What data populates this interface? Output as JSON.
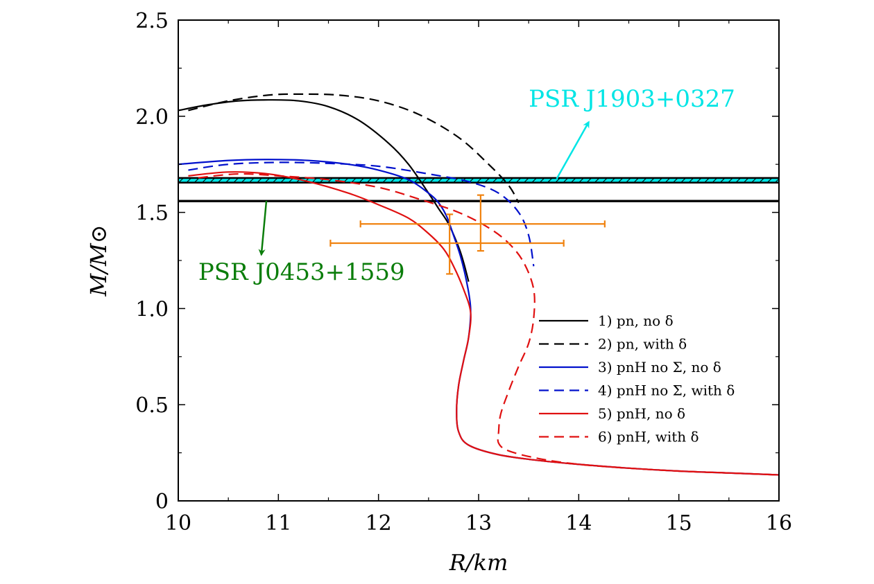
{
  "chart_data": {
    "type": "line",
    "title": "",
    "xlabel": "R/km",
    "ylabel": "M/M⊙",
    "xlim": [
      10,
      16
    ],
    "ylim": [
      0,
      2.5
    ],
    "xticks": [
      10,
      11,
      12,
      13,
      14,
      15,
      16
    ],
    "xtick_labels": [
      "10",
      "11",
      "12",
      "13",
      "14",
      "15",
      "16"
    ],
    "yticks": [
      0,
      0.5,
      1.0,
      1.5,
      2.0,
      2.5
    ],
    "ytick_labels": [
      "0",
      "0.5",
      "1.0",
      "1.5",
      "2.0",
      "2.5"
    ],
    "legend_position": "bottom-right",
    "series": [
      {
        "name": "1) pn, no δ",
        "color": "#000000",
        "dash": "solid",
        "x": [
          10.0,
          10.3,
          10.6,
          10.9,
          11.2,
          11.5,
          11.8,
          12.1,
          12.3,
          12.5,
          12.6,
          12.7,
          12.8,
          12.85,
          12.9
        ],
        "y": [
          2.03,
          2.06,
          2.08,
          2.085,
          2.08,
          2.05,
          1.98,
          1.86,
          1.75,
          1.6,
          1.52,
          1.44,
          1.32,
          1.24,
          1.14
        ]
      },
      {
        "name": "2) pn, with δ",
        "color": "#000000",
        "dash": "dashed",
        "x": [
          10.1,
          10.5,
          10.9,
          11.2,
          11.6,
          12.0,
          12.4,
          12.8,
          13.1,
          13.3,
          13.4
        ],
        "y": [
          2.03,
          2.08,
          2.11,
          2.115,
          2.11,
          2.08,
          2.01,
          1.89,
          1.75,
          1.64,
          1.55
        ]
      },
      {
        "name": "3) pnH no Σ, no δ",
        "color": "#0010cc",
        "dash": "solid",
        "x": [
          10.0,
          10.5,
          10.9,
          11.3,
          11.7,
          12.0,
          12.3,
          12.5,
          12.6,
          12.68,
          12.75,
          12.82,
          12.88,
          12.92,
          12.9,
          12.85,
          12.8,
          12.78,
          12.8,
          12.9,
          13.2,
          13.6,
          14.0,
          14.5,
          15.0,
          15.5,
          16.0
        ],
        "y": [
          1.75,
          1.77,
          1.775,
          1.77,
          1.75,
          1.72,
          1.67,
          1.6,
          1.55,
          1.48,
          1.38,
          1.27,
          1.14,
          1.0,
          0.85,
          0.73,
          0.6,
          0.47,
          0.36,
          0.29,
          0.24,
          0.21,
          0.19,
          0.17,
          0.155,
          0.145,
          0.135
        ]
      },
      {
        "name": "4) pnH no Σ, with δ",
        "color": "#0010cc",
        "dash": "dashed",
        "x": [
          10.1,
          10.5,
          11.0,
          11.5,
          12.0,
          12.5,
          12.9,
          13.2,
          13.4,
          13.5,
          13.55
        ],
        "y": [
          1.72,
          1.75,
          1.76,
          1.755,
          1.74,
          1.7,
          1.66,
          1.6,
          1.5,
          1.38,
          1.22
        ]
      },
      {
        "name": "5) pnH, no δ",
        "color": "#e01010",
        "dash": "solid",
        "x": [
          10.1,
          10.5,
          10.9,
          11.3,
          11.7,
          12.0,
          12.3,
          12.5,
          12.65,
          12.75,
          12.85,
          12.92,
          12.9,
          12.85,
          12.8,
          12.78,
          12.8,
          12.9,
          13.2,
          13.6,
          14.0,
          14.5,
          15.0,
          15.5,
          16.0
        ],
        "y": [
          1.69,
          1.71,
          1.7,
          1.66,
          1.6,
          1.54,
          1.47,
          1.39,
          1.31,
          1.22,
          1.1,
          0.98,
          0.85,
          0.73,
          0.6,
          0.47,
          0.36,
          0.29,
          0.24,
          0.21,
          0.19,
          0.17,
          0.155,
          0.145,
          0.135
        ]
      },
      {
        "name": "6) pnH, with δ",
        "color": "#e01010",
        "dash": "dashed",
        "x": [
          10.2,
          10.6,
          11.0,
          11.5,
          12.0,
          12.4,
          12.8,
          13.1,
          13.3,
          13.45,
          13.55,
          13.55,
          13.5,
          13.4,
          13.3,
          13.22,
          13.2,
          13.2,
          13.3,
          13.6,
          14.0,
          14.5,
          15.0,
          15.5,
          16.0
        ],
        "y": [
          1.68,
          1.7,
          1.69,
          1.67,
          1.63,
          1.57,
          1.5,
          1.42,
          1.34,
          1.24,
          1.1,
          0.95,
          0.82,
          0.7,
          0.57,
          0.45,
          0.36,
          0.3,
          0.26,
          0.22,
          0.19,
          0.17,
          0.155,
          0.145,
          0.135
        ]
      }
    ],
    "bands": [
      {
        "name": "PSR J1903+0327",
        "color": "#00e5e5",
        "line_color": "#000000",
        "y_low": 1.655,
        "y_high": 1.679,
        "hatched": true
      },
      {
        "name": "PSR J0453+1559",
        "color": "#000000",
        "y_low": 1.553,
        "y_high": 1.565,
        "hatched": false
      }
    ],
    "annotations": [
      {
        "text": "PSR J1903+0327",
        "color": "#00e5e5",
        "text_at": [
          13.5,
          2.05
        ],
        "arrow_from": [
          13.78,
          1.675
        ],
        "arrow_to": [
          14.1,
          1.97
        ]
      },
      {
        "text": "PSR J0453+1559",
        "color": "#0a7d0a",
        "text_at": [
          10.2,
          1.15
        ],
        "arrow_from": [
          10.88,
          1.56
        ],
        "arrow_to": [
          10.83,
          1.28
        ]
      }
    ],
    "error_bars": [
      {
        "color": "#f0820f",
        "x": 12.71,
        "y": 1.34,
        "x_err": [
          11.52,
          13.85
        ],
        "y_err": [
          1.18,
          1.49
        ]
      },
      {
        "color": "#f0820f",
        "x": 13.02,
        "y": 1.44,
        "x_err": [
          11.82,
          14.26
        ],
        "y_err": [
          1.3,
          1.59
        ]
      }
    ]
  }
}
